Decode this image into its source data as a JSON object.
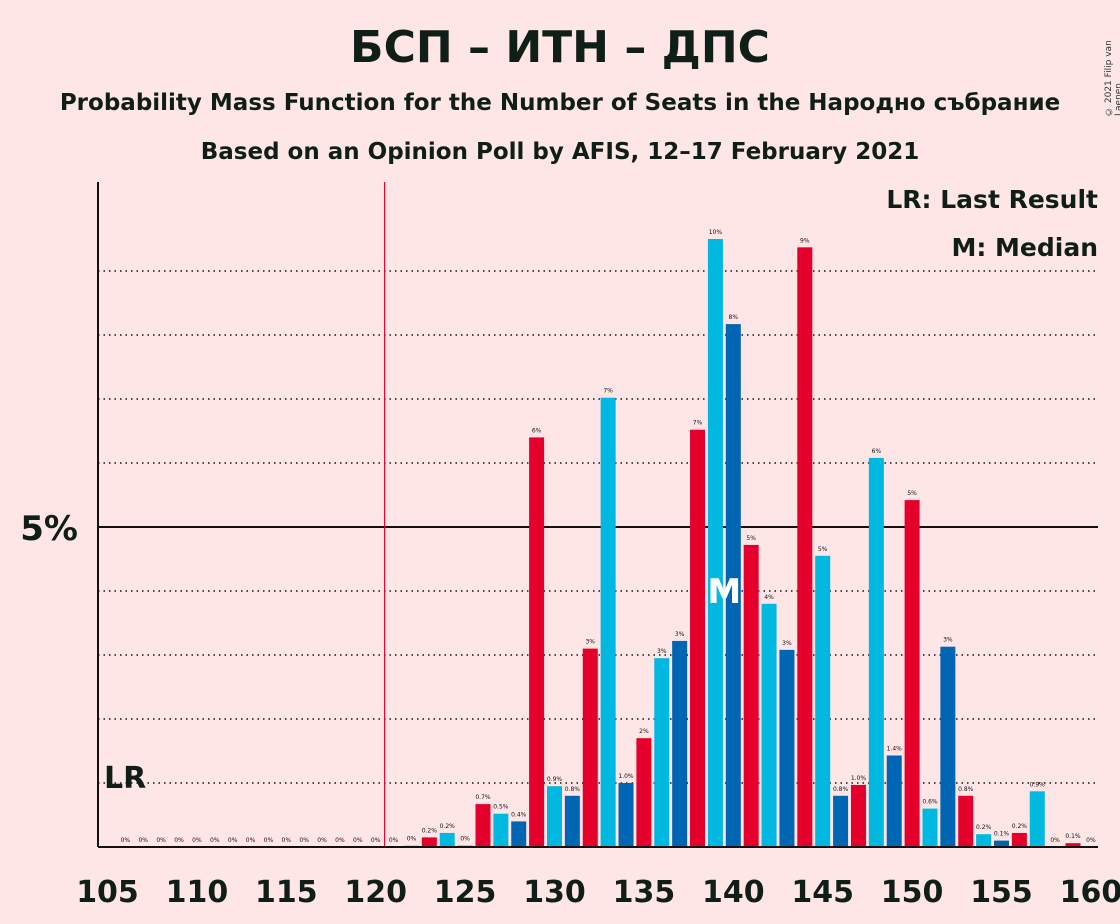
{
  "title": "БСП – ИТН – ДПС",
  "subtitle": "Probability Mass Function for the Number of Seats in the Народно събрание",
  "subtitle2": "Based on an Opinion Poll by AFIS, 12–17 February 2021",
  "copyright": "© 2021 Filip van Laenen",
  "legend": {
    "lr": "LR: Last Result",
    "m": "M: Median"
  },
  "colors": {
    "red": "#E4002B",
    "light_blue": "#00B8E0",
    "dark_blue": "#0066B3",
    "background": "#FFE6E6",
    "lr_line": "#E4002B"
  },
  "chart_data": {
    "type": "bar",
    "x_ticks": [
      105,
      110,
      115,
      120,
      125,
      130,
      135,
      140,
      145,
      150,
      155,
      160
    ],
    "y_tick_label": "5%",
    "y_tick_value": 5,
    "ylim": [
      0,
      10.3
    ],
    "xlim": [
      105,
      160
    ],
    "last_result": 121,
    "last_result_label": "LR",
    "median": 140,
    "median_label": "M",
    "gridlines": [
      1,
      2,
      3,
      4,
      6,
      7,
      8,
      9
    ],
    "bars": [
      {
        "x": 106,
        "value": 0,
        "label": "0%",
        "color": "red"
      },
      {
        "x": 107,
        "value": 0,
        "label": "0%",
        "color": "red"
      },
      {
        "x": 108,
        "value": 0,
        "label": "0%",
        "color": "red"
      },
      {
        "x": 109,
        "value": 0,
        "label": "0%",
        "color": "red"
      },
      {
        "x": 110,
        "value": 0,
        "label": "0%",
        "color": "red"
      },
      {
        "x": 111,
        "value": 0,
        "label": "0%",
        "color": "red"
      },
      {
        "x": 112,
        "value": 0,
        "label": "0%",
        "color": "red"
      },
      {
        "x": 113,
        "value": 0,
        "label": "0%",
        "color": "red"
      },
      {
        "x": 114,
        "value": 0,
        "label": "0%",
        "color": "red"
      },
      {
        "x": 115,
        "value": 0,
        "label": "0%",
        "color": "red"
      },
      {
        "x": 116,
        "value": 0,
        "label": "0%",
        "color": "red"
      },
      {
        "x": 117,
        "value": 0,
        "label": "0%",
        "color": "red"
      },
      {
        "x": 118,
        "value": 0,
        "label": "0%",
        "color": "red"
      },
      {
        "x": 119,
        "value": 0,
        "label": "0%",
        "color": "red"
      },
      {
        "x": 120,
        "value": 0,
        "label": "0%",
        "color": "red"
      },
      {
        "x": 121,
        "value": 0,
        "label": "0%",
        "color": "red"
      },
      {
        "x": 122,
        "value": 0.02,
        "label": "0%",
        "color": "light_blue"
      },
      {
        "x": 123,
        "value": 0.15,
        "label": "0.2%",
        "color": "red"
      },
      {
        "x": 124,
        "value": 0.22,
        "label": "0.2%",
        "color": "light_blue"
      },
      {
        "x": 125,
        "value": 0.02,
        "label": "0%",
        "color": "dark_blue"
      },
      {
        "x": 126,
        "value": 0.67,
        "label": "0.7%",
        "color": "red"
      },
      {
        "x": 127,
        "value": 0.52,
        "label": "0.5%",
        "color": "light_blue"
      },
      {
        "x": 128,
        "value": 0.4,
        "label": "0.4%",
        "color": "dark_blue"
      },
      {
        "x": 129,
        "value": 6.4,
        "label": "6%",
        "color": "red"
      },
      {
        "x": 130,
        "value": 0.95,
        "label": "0.9%",
        "color": "light_blue"
      },
      {
        "x": 131,
        "value": 0.8,
        "label": "0.8%",
        "color": "dark_blue"
      },
      {
        "x": 132,
        "value": 3.1,
        "label": "3%",
        "color": "red"
      },
      {
        "x": 133,
        "value": 7.02,
        "label": "7%",
        "color": "light_blue"
      },
      {
        "x": 134,
        "value": 1.0,
        "label": "1.0%",
        "color": "dark_blue"
      },
      {
        "x": 135,
        "value": 1.7,
        "label": "2%",
        "color": "red"
      },
      {
        "x": 136,
        "value": 2.95,
        "label": "3%",
        "color": "light_blue"
      },
      {
        "x": 137,
        "value": 3.22,
        "label": "3%",
        "color": "dark_blue"
      },
      {
        "x": 138,
        "value": 6.52,
        "label": "7%",
        "color": "red"
      },
      {
        "x": 139,
        "value": 9.5,
        "label": "10%",
        "color": "light_blue"
      },
      {
        "x": 140,
        "value": 8.17,
        "label": "8%",
        "color": "dark_blue"
      },
      {
        "x": 141,
        "value": 4.72,
        "label": "5%",
        "color": "red"
      },
      {
        "x": 142,
        "value": 3.8,
        "label": "4%",
        "color": "light_blue"
      },
      {
        "x": 143,
        "value": 3.08,
        "label": "3%",
        "color": "dark_blue"
      },
      {
        "x": 144,
        "value": 9.37,
        "label": "9%",
        "color": "red"
      },
      {
        "x": 145,
        "value": 4.55,
        "label": "5%",
        "color": "light_blue"
      },
      {
        "x": 146,
        "value": 0.8,
        "label": "0.8%",
        "color": "dark_blue"
      },
      {
        "x": 147,
        "value": 0.97,
        "label": "1.0%",
        "color": "red"
      },
      {
        "x": 148,
        "value": 6.08,
        "label": "6%",
        "color": "light_blue"
      },
      {
        "x": 149,
        "value": 1.43,
        "label": "1.4%",
        "color": "dark_blue"
      },
      {
        "x": 150,
        "value": 5.42,
        "label": "5%",
        "color": "red"
      },
      {
        "x": 151,
        "value": 0.6,
        "label": "0.6%",
        "color": "light_blue"
      },
      {
        "x": 152,
        "value": 3.13,
        "label": "3%",
        "color": "dark_blue"
      },
      {
        "x": 153,
        "value": 0.8,
        "label": "0.8%",
        "color": "red"
      },
      {
        "x": 154,
        "value": 0.2,
        "label": "0.2%",
        "color": "light_blue"
      },
      {
        "x": 155,
        "value": 0.1,
        "label": "0.1%",
        "color": "dark_blue"
      },
      {
        "x": 156,
        "value": 0.22,
        "label": "0.2%",
        "color": "red"
      },
      {
        "x": 157,
        "value": 0.87,
        "label": "0.9%",
        "color": "light_blue"
      },
      {
        "x": 158,
        "value": 0,
        "label": "0%",
        "color": "dark_blue"
      },
      {
        "x": 159,
        "value": 0.06,
        "label": "0.1%",
        "color": "red"
      },
      {
        "x": 160,
        "value": 0,
        "label": "0%",
        "color": "light_blue"
      }
    ]
  }
}
